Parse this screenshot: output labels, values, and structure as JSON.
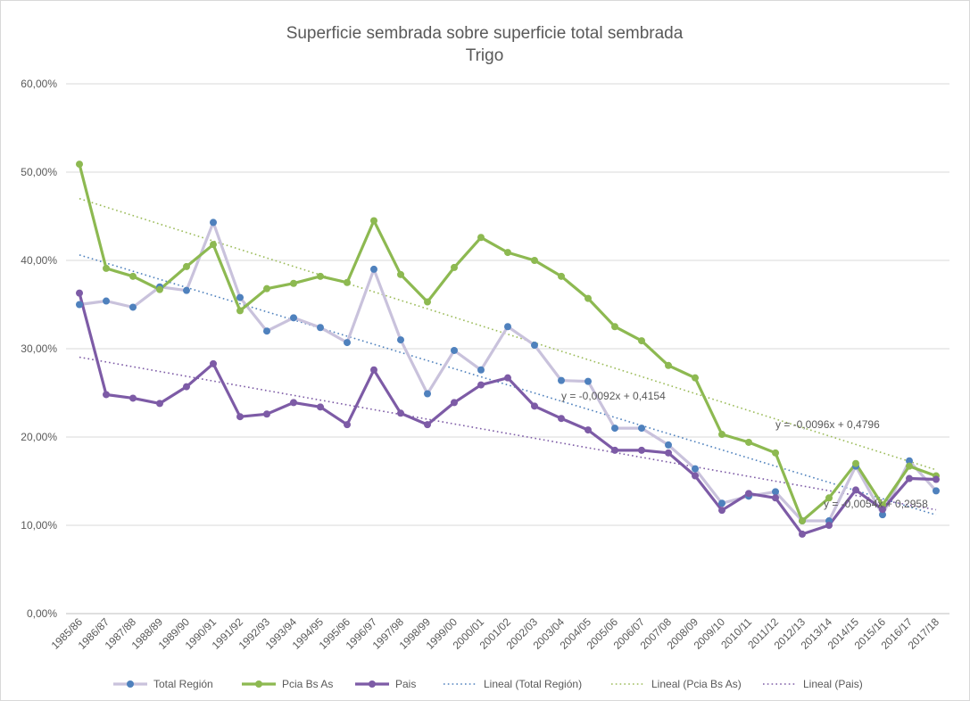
{
  "chart_data": {
    "type": "line",
    "title": "Superficie sembrada sobre superficie total sembrada",
    "subtitle": "Trigo",
    "xlabel": "",
    "ylabel": "",
    "ylim": [
      0,
      0.6
    ],
    "y_ticks": [
      "0,00%",
      "10,00%",
      "20,00%",
      "30,00%",
      "40,00%",
      "50,00%",
      "60,00%"
    ],
    "grid": true,
    "legend_position": "bottom",
    "categories": [
      "1985/86",
      "1986/87",
      "1987/88",
      "1988/89",
      "1989/90",
      "1990/91",
      "1991/92",
      "1992/93",
      "1993/94",
      "1994/95",
      "1995/96",
      "1996/97",
      "1997/98",
      "1998/99",
      "1999/00",
      "2000/01",
      "2001/02",
      "2002/03",
      "2003/04",
      "2004/05",
      "2005/06",
      "2006/07",
      "2007/08",
      "2008/09",
      "2009/10",
      "2010/11",
      "2011/12",
      "2012/13",
      "2013/14",
      "2014/15",
      "2015/16",
      "2016/17",
      "2017/18"
    ],
    "series": [
      {
        "name": "Total Región",
        "line_color": "#c9c2dc",
        "marker_color": "#4f81bd",
        "values": [
          0.35,
          0.354,
          0.347,
          0.37,
          0.366,
          0.443,
          0.358,
          0.32,
          0.335,
          0.324,
          0.307,
          0.39,
          0.31,
          0.249,
          0.298,
          0.276,
          0.325,
          0.304,
          0.264,
          0.263,
          0.21,
          0.21,
          0.191,
          0.164,
          0.125,
          0.133,
          0.138,
          0.105,
          0.105,
          0.167,
          0.112,
          0.173,
          0.139
        ]
      },
      {
        "name": "Pcia Bs As",
        "line_color": "#8db951",
        "marker_color": "#8db951",
        "values": [
          0.509,
          0.391,
          0.382,
          0.367,
          0.393,
          0.418,
          0.343,
          0.368,
          0.374,
          0.382,
          0.375,
          0.445,
          0.384,
          0.353,
          0.392,
          0.426,
          0.409,
          0.4,
          0.382,
          0.357,
          0.325,
          0.309,
          0.281,
          0.267,
          0.203,
          0.194,
          0.182,
          0.105,
          0.131,
          0.17,
          0.123,
          0.167,
          0.156
        ]
      },
      {
        "name": "Pais",
        "line_color": "#7d5ba6",
        "marker_color": "#7d5ba6",
        "values": [
          0.363,
          0.248,
          0.244,
          0.238,
          0.257,
          0.283,
          0.223,
          0.226,
          0.239,
          0.234,
          0.214,
          0.276,
          0.227,
          0.214,
          0.239,
          0.259,
          0.267,
          0.235,
          0.221,
          0.208,
          0.185,
          0.185,
          0.182,
          0.156,
          0.117,
          0.136,
          0.131,
          0.09,
          0.1,
          0.14,
          0.118,
          0.153,
          0.152
        ]
      }
    ],
    "trendlines": [
      {
        "name": "Lineal (Total Región)",
        "color": "#4f81bd",
        "slope": -0.0092,
        "intercept": 0.4154,
        "equation": "y = -0,0092x + 0,4154"
      },
      {
        "name": "Lineal (Pcia Bs As)",
        "color": "#9bbb59",
        "slope": -0.0096,
        "intercept": 0.4796,
        "equation": "y = -0,0096x + 0,4796"
      },
      {
        "name": "Lineal (Pais)",
        "color": "#7d5ba6",
        "slope": -0.0054,
        "intercept": 0.2958,
        "equation": "y = -0,0054x + 0,2958"
      }
    ]
  }
}
